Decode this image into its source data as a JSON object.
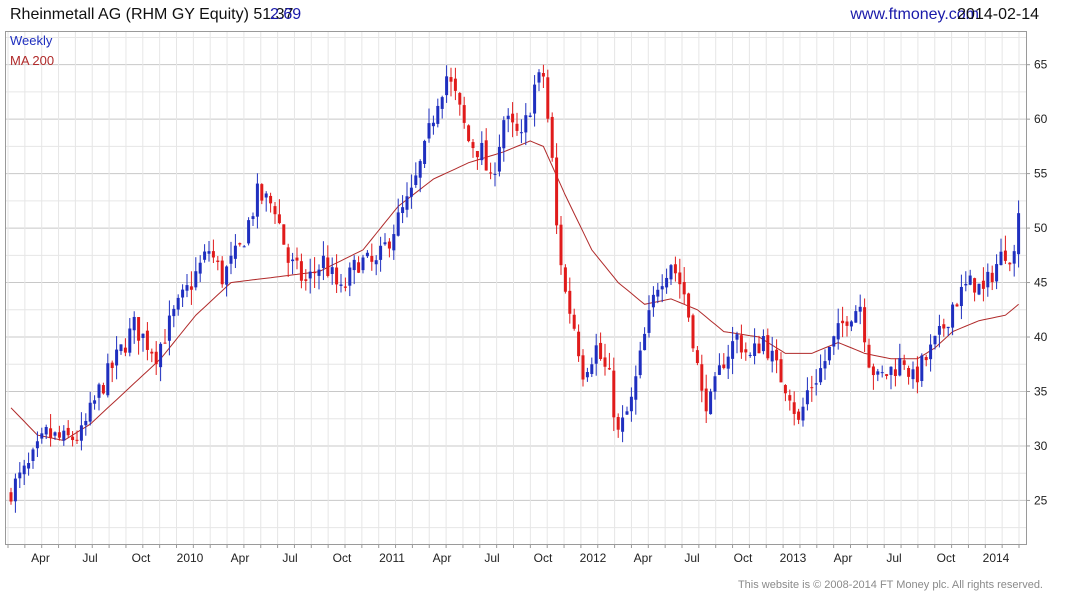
{
  "header": {
    "title": "Rheinmetall AG (RHM GY Equity) 51.37",
    "change": "2.69",
    "site": "www.ftmoney.com",
    "date": "2014-02-14"
  },
  "legend": {
    "weekly": "Weekly",
    "ma": "MA 200"
  },
  "footer": "This website is © 2008-2014 FT Money plc. All rights reserved.",
  "colors": {
    "up": "#1f2fbf",
    "down": "#e01b1b",
    "ma": "#b02a2a",
    "grid": "#d4d4d4",
    "frame": "#9a9a9a"
  },
  "chart_data": {
    "type": "candlestick",
    "frequency": "weekly",
    "y_ticks": [
      25,
      30,
      35,
      40,
      45,
      50,
      55,
      60,
      65
    ],
    "ylim": [
      21,
      68
    ],
    "grid": true,
    "x_tick_labels": [
      "Apr",
      "Jul",
      "Oct",
      "2010",
      "Apr",
      "Jul",
      "Oct",
      "2011",
      "Apr",
      "Jul",
      "Oct",
      "2012",
      "Apr",
      "Jul",
      "Oct",
      "2013",
      "Apr",
      "Jul",
      "Oct",
      "2014"
    ],
    "close_anchors": [
      [
        0,
        26.0
      ],
      [
        4,
        28.0
      ],
      [
        8,
        31.0
      ],
      [
        12,
        30.5
      ],
      [
        16,
        31.0
      ],
      [
        20,
        35.0
      ],
      [
        24,
        38.0
      ],
      [
        28,
        41.0
      ],
      [
        33,
        38.5
      ],
      [
        37,
        42.0
      ],
      [
        41,
        45.0
      ],
      [
        45,
        48.0
      ],
      [
        48,
        45.5
      ],
      [
        52,
        48.0
      ],
      [
        56,
        53.0
      ],
      [
        60,
        52.0
      ],
      [
        63,
        47.0
      ],
      [
        67,
        45.0
      ],
      [
        71,
        47.0
      ],
      [
        75,
        44.0
      ],
      [
        79,
        47.0
      ],
      [
        83,
        46.5
      ],
      [
        87,
        50.0
      ],
      [
        91,
        53.0
      ],
      [
        94,
        57.0
      ],
      [
        97,
        62.0
      ],
      [
        99,
        64.0
      ],
      [
        101,
        62.0
      ],
      [
        104,
        58.0
      ],
      [
        107,
        57.0
      ],
      [
        109,
        54.0
      ],
      [
        112,
        60.0
      ],
      [
        116,
        58.0
      ],
      [
        119,
        63.0
      ],
      [
        121,
        64.0
      ],
      [
        123,
        56.0
      ],
      [
        124,
        50.0
      ],
      [
        126,
        44.0
      ],
      [
        128,
        41.0
      ],
      [
        130,
        37.0
      ],
      [
        133,
        39.0
      ],
      [
        136,
        36.0
      ],
      [
        138,
        31.0
      ],
      [
        141,
        34.0
      ],
      [
        144,
        40.0
      ],
      [
        147,
        45.0
      ],
      [
        150,
        47.0
      ],
      [
        153,
        44.0
      ],
      [
        155,
        40.0
      ],
      [
        157,
        34.5
      ],
      [
        159,
        34.0
      ],
      [
        162,
        38.0
      ],
      [
        165,
        40.0
      ],
      [
        168,
        38.0
      ],
      [
        171,
        40.0
      ],
      [
        174,
        37.0
      ],
      [
        177,
        35.0
      ],
      [
        179,
        32.0
      ],
      [
        181,
        35.0
      ],
      [
        184,
        37.0
      ],
      [
        187,
        39.5
      ],
      [
        190,
        42.0
      ],
      [
        193,
        43.0
      ],
      [
        195,
        38.0
      ],
      [
        197,
        36.0
      ],
      [
        200,
        37.0
      ],
      [
        203,
        38.0
      ],
      [
        205,
        36.0
      ],
      [
        208,
        38.0
      ],
      [
        211,
        40.0
      ],
      [
        214,
        43.0
      ],
      [
        217,
        44.5
      ],
      [
        219,
        45.0
      ],
      [
        221,
        44.0
      ],
      [
        223,
        46.0
      ],
      [
        226,
        48.0
      ],
      [
        228,
        47.5
      ],
      [
        229,
        51.37
      ]
    ],
    "ma200_anchors": [
      [
        0,
        33.5
      ],
      [
        6,
        31.0
      ],
      [
        12,
        30.5
      ],
      [
        18,
        32.0
      ],
      [
        26,
        35.0
      ],
      [
        34,
        38.0
      ],
      [
        42,
        42.0
      ],
      [
        50,
        45.0
      ],
      [
        60,
        45.5
      ],
      [
        70,
        46.0
      ],
      [
        80,
        48.0
      ],
      [
        88,
        52.0
      ],
      [
        96,
        54.5
      ],
      [
        104,
        56.0
      ],
      [
        112,
        57.0
      ],
      [
        118,
        58.0
      ],
      [
        121,
        57.5
      ],
      [
        126,
        53.0
      ],
      [
        132,
        48.0
      ],
      [
        138,
        45.0
      ],
      [
        144,
        43.0
      ],
      [
        150,
        43.5
      ],
      [
        156,
        42.5
      ],
      [
        162,
        40.5
      ],
      [
        170,
        40.0
      ],
      [
        176,
        38.5
      ],
      [
        182,
        38.5
      ],
      [
        188,
        39.5
      ],
      [
        194,
        38.5
      ],
      [
        200,
        38.0
      ],
      [
        206,
        38.0
      ],
      [
        210,
        39.0
      ],
      [
        214,
        40.5
      ],
      [
        220,
        41.5
      ],
      [
        226,
        42.0
      ],
      [
        229,
        43.0
      ]
    ]
  }
}
